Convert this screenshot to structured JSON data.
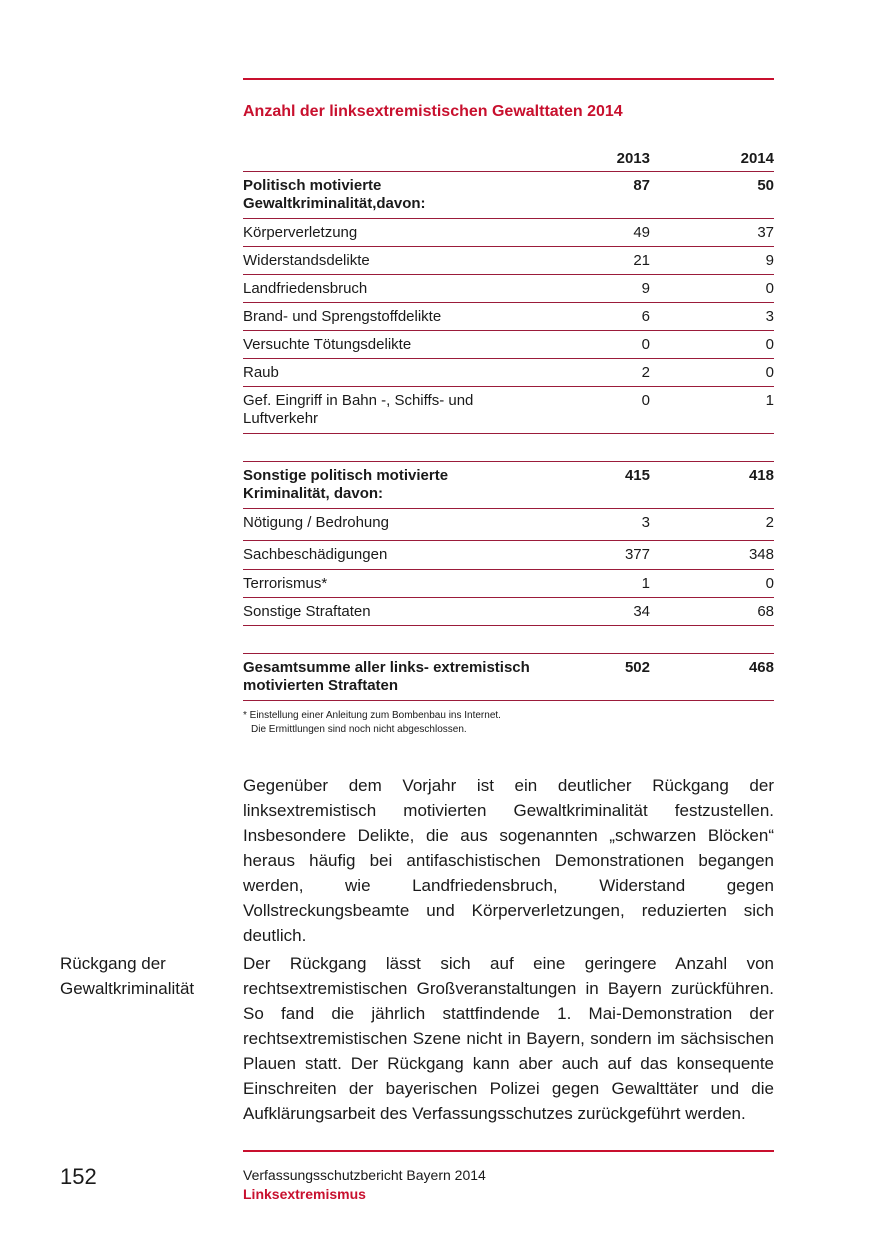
{
  "table": {
    "title": "Anzahl der linksextremistischen Gewalttaten 2014",
    "columns": [
      "2013",
      "2014"
    ],
    "rows": [
      {
        "label": "Politisch motivierte Gewaltkriminalität,davon:",
        "v2013": "87",
        "v2014": "50",
        "bold": true
      },
      {
        "label": "Körperverletzung",
        "v2013": "49",
        "v2014": "37"
      },
      {
        "label": "Widerstandsdelikte",
        "v2013": "21",
        "v2014": "9"
      },
      {
        "label": "Landfriedensbruch",
        "v2013": "9",
        "v2014": "0"
      },
      {
        "label": "Brand- und Sprengstoffdelikte",
        "v2013": "6",
        "v2014": "3"
      },
      {
        "label": "Versuchte Tötungsdelikte",
        "v2013": "0",
        "v2014": "0"
      },
      {
        "label": "Raub",
        "v2013": "2",
        "v2014": "0"
      },
      {
        "label": "Gef. Eingriff in Bahn -, Schiffs- und Luftverkehr",
        "v2013": "0",
        "v2014": "1"
      },
      {
        "label": "Sonstige politisch motivierte Kriminalität, davon:",
        "v2013": "415",
        "v2014": "418",
        "bold": true
      },
      {
        "label": "Nötigung / Bedrohung",
        "v2013": "3",
        "v2014": "2"
      },
      {
        "label": "Sachbeschädigungen",
        "v2013": "377",
        "v2014": "348"
      },
      {
        "label": "Terrorismus*",
        "v2013": "1",
        "v2014": "0"
      },
      {
        "label": "Sonstige Straftaten",
        "v2013": "34",
        "v2014": "68"
      },
      {
        "label": "Gesamtsumme aller links- extremistisch motivierten Straftaten",
        "v2013": "502",
        "v2014": "468",
        "bold": true
      }
    ],
    "footnote": [
      "* Einstellung einer Anleitung zum Bombenbau ins Internet.",
      "Die Ermittlungen sind noch nicht abgeschlossen."
    ]
  },
  "body": {
    "paragraph1": "Gegenüber dem Vorjahr ist ein deutlicher Rückgang der linksextremistisch motivierten Gewaltkriminalität festzustellen. Insbesondere Delikte, die aus sogenannten „schwarzen Blöcken“ heraus häufig bei antifaschistischen Demonstrationen begangen werden, wie Landfriedensbruch, Widerstand gegen Vollstreckungsbeamte und Körperverletzungen, reduzierten sich deutlich.",
    "side_note": [
      "Rückgang der",
      "Gewaltkriminalität"
    ],
    "paragraph2": "Der Rückgang lässt sich auf eine geringere Anzahl von rechtsextremistischen Großveranstaltungen in Bayern zurückführen. So fand die jährlich stattfindende 1. Mai-Demonstration der rechtsextremistischen Szene nicht in Bayern, sondern im sächsischen Plauen statt. Der Rückgang kann aber auch auf das konsequente Einschreiten der bayerischen Polizei gegen Gewalttäter und die Aufklärungsarbeit des Verfassungsschutzes zurückgeführt werden."
  },
  "footer": {
    "page_number": "152",
    "publication": "Verfassungsschutzbericht Bayern 2014",
    "section": "Linksextremismus"
  },
  "colors": {
    "accent": "#c8102e",
    "table_rule": "#9b1b3a"
  }
}
